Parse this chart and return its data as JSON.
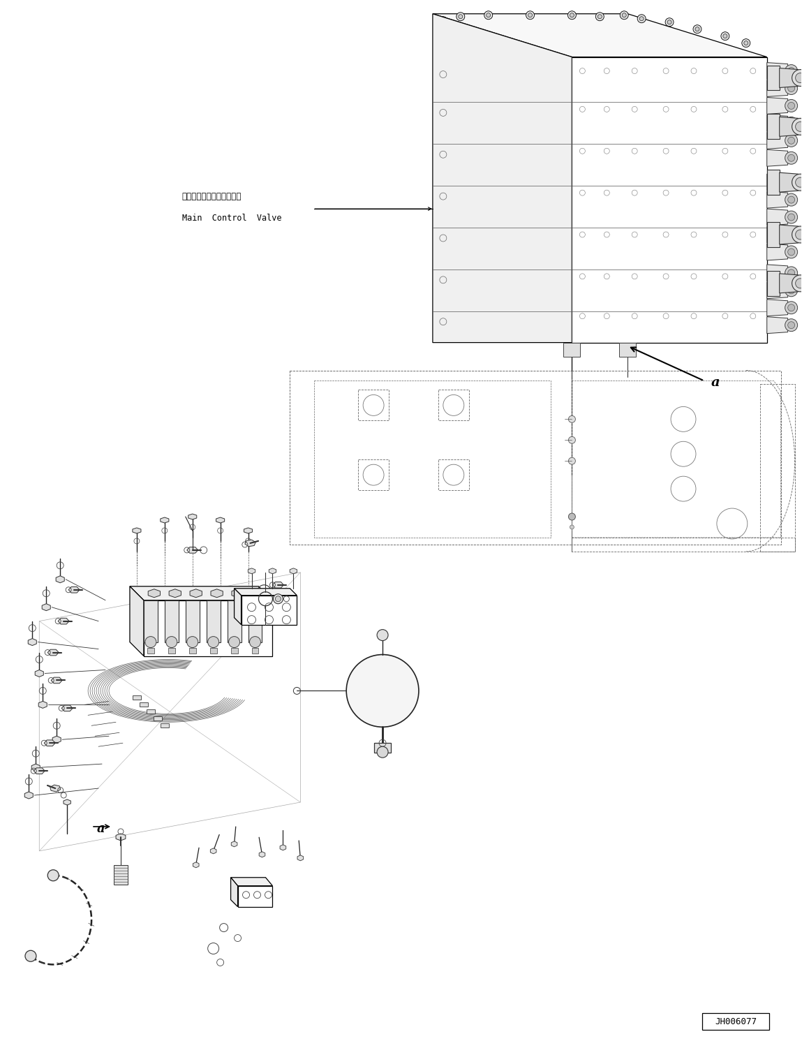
{
  "background_color": "#ffffff",
  "fig_width": 11.49,
  "fig_height": 14.91,
  "dpi": 100,
  "label_japanese": "メインコントロールバルブ",
  "label_english": "Main  Control  Valve",
  "label_a_upper": "a",
  "label_a_lower": "a",
  "part_number": "JH006077",
  "text_color": "#000000",
  "line_color": "#000000"
}
